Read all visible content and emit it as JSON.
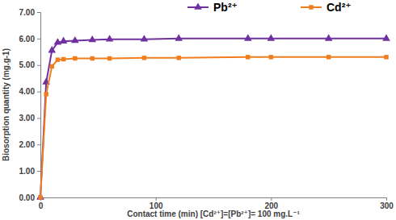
{
  "chart_data": {
    "type": "line",
    "x_label": "Contact time (min) [Cd²⁺]=[Pb²⁺]= 100 mg.L⁻¹",
    "y_label": "Biosorption quantity (mg.g-1)",
    "x": [
      0,
      5,
      10,
      15,
      20,
      30,
      45,
      60,
      90,
      120,
      180,
      200,
      250,
      300
    ],
    "series": [
      {
        "name": "Pb²⁺",
        "color": "#7030a0",
        "marker": "triangle",
        "line_style": "solid",
        "values": [
          0,
          4.35,
          5.55,
          5.85,
          5.9,
          5.92,
          5.95,
          5.97,
          5.97,
          6.0,
          6.0,
          6.0,
          6.0,
          6.0
        ]
      },
      {
        "name": "Cd²⁺",
        "color": "#f07d1e",
        "marker": "square",
        "line_style": "solid",
        "values": [
          0,
          3.9,
          4.95,
          5.2,
          5.22,
          5.25,
          5.25,
          5.25,
          5.27,
          5.27,
          5.3,
          5.3,
          5.3,
          5.3
        ]
      }
    ],
    "xlim": [
      0,
      300
    ],
    "xticks": [
      0,
      100,
      200,
      300
    ],
    "ylim": [
      0,
      7
    ],
    "yticks": [
      {
        "value": 0,
        "label": "0.00"
      },
      {
        "value": 1,
        "label": "1.00"
      },
      {
        "value": 2,
        "label": "2.00"
      },
      {
        "value": 3,
        "label": "3.00"
      },
      {
        "value": 4,
        "label": "4.00"
      },
      {
        "value": 5,
        "label": "5.00"
      },
      {
        "value": 6,
        "label": "6.00"
      },
      {
        "value": 7,
        "label": "7.00"
      }
    ],
    "grid": false,
    "legend": "top"
  }
}
